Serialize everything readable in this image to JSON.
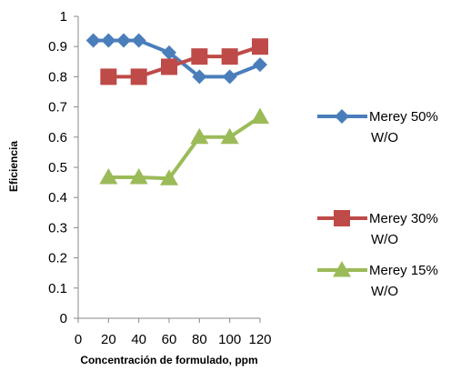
{
  "chart_data": {
    "type": "line",
    "title": "",
    "xlabel": "Concentración de formulado, ppm",
    "ylabel": "Eficiencia",
    "xlim": [
      0,
      120
    ],
    "ylim": [
      0,
      1
    ],
    "xticks": [
      "0",
      "20",
      "40",
      "60",
      "80",
      "100",
      "120"
    ],
    "yticks": [
      "0",
      "0.1",
      "0.2",
      "0.3",
      "0.4",
      "0.5",
      "0.6",
      "0.7",
      "0.8",
      "0.9",
      "1"
    ],
    "grid": false,
    "legend_position": "right",
    "series": [
      {
        "name_lines": [
          "Merey 50%",
          "W/O"
        ],
        "marker": "diamond",
        "color": "#4A7EBB",
        "x": [
          10,
          20,
          30,
          40,
          60,
          80,
          100,
          120
        ],
        "y": [
          0.92,
          0.92,
          0.92,
          0.92,
          0.88,
          0.8,
          0.8,
          0.84
        ]
      },
      {
        "name_lines": [
          "Merey 30%",
          "W/O"
        ],
        "marker": "square",
        "color": "#BE4B48",
        "x": [
          20,
          40,
          60,
          80,
          100,
          120
        ],
        "y": [
          0.8,
          0.8,
          0.833,
          0.867,
          0.867,
          0.9
        ]
      },
      {
        "name_lines": [
          "Merey 15%",
          "W/O"
        ],
        "marker": "triangle",
        "color": "#9BBB59",
        "x": [
          20,
          40,
          60,
          80,
          100,
          120
        ],
        "y": [
          0.467,
          0.467,
          0.463,
          0.6,
          0.6,
          0.667
        ]
      }
    ]
  }
}
